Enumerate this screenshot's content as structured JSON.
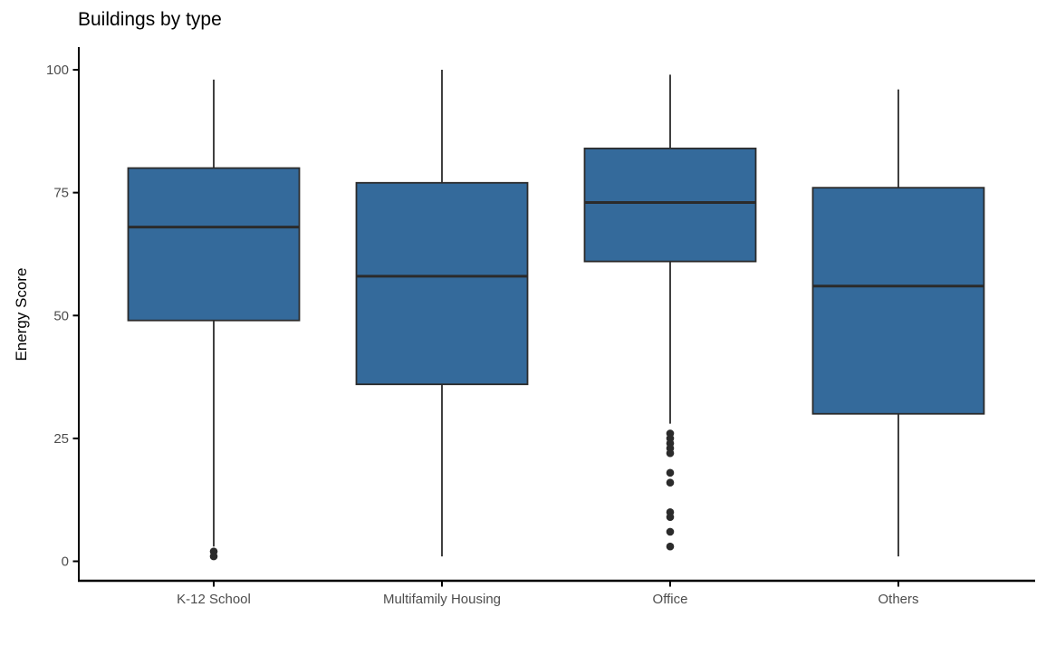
{
  "title": "Buildings by type",
  "y_axis_label": "Energy Score",
  "colors": {
    "box_fill": "#346A9B",
    "box_stroke": "#2B2B2B",
    "median_stroke": "#2B2B2B",
    "outlier_fill": "#2B2B2B",
    "axis_line": "#000000",
    "tick_label": "#4D4D4D",
    "title_color": "#000000"
  },
  "chart_data": {
    "type": "boxplot",
    "title": "Buildings by type",
    "xlabel": "",
    "ylabel": "Energy Score",
    "ylim": [
      0,
      100
    ],
    "y_ticks": [
      0,
      25,
      50,
      75,
      100
    ],
    "grid": false,
    "legend": "none",
    "categories": [
      "K-12 School",
      "Multifamily Housing",
      "Office",
      "Others"
    ],
    "series": [
      {
        "name": "K-12 School",
        "whisker_low": 3,
        "q1": 49,
        "median": 68,
        "q3": 80,
        "whisker_high": 98,
        "outliers": [
          2,
          1
        ]
      },
      {
        "name": "Multifamily Housing",
        "whisker_low": 1,
        "q1": 36,
        "median": 58,
        "q3": 77,
        "whisker_high": 100,
        "outliers": []
      },
      {
        "name": "Office",
        "whisker_low": 28,
        "q1": 61,
        "median": 73,
        "q3": 84,
        "whisker_high": 99,
        "outliers": [
          26,
          25,
          24,
          23,
          22,
          18,
          16,
          10,
          9,
          6,
          3
        ]
      },
      {
        "name": "Others",
        "whisker_low": 1,
        "q1": 30,
        "median": 56,
        "q3": 76,
        "whisker_high": 96,
        "outliers": []
      }
    ]
  }
}
